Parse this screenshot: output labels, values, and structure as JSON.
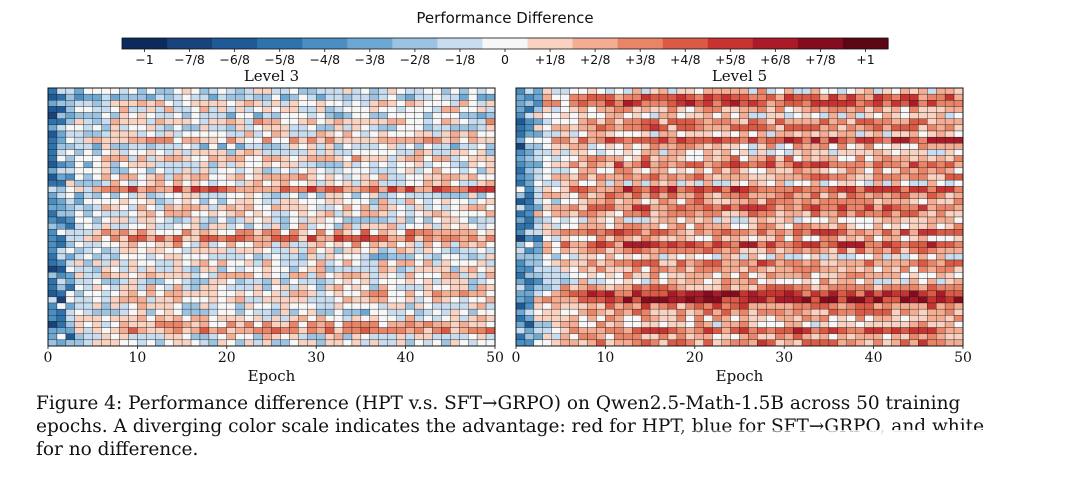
{
  "colorbar": {
    "title": "Performance Difference",
    "ticks": [
      "−1",
      "−7/8",
      "−6/8",
      "−5/8",
      "−4/8",
      "−3/8",
      "−2/8",
      "−1/8",
      "0",
      "+1/8",
      "+2/8",
      "+3/8",
      "+4/8",
      "+5/8",
      "+6/8",
      "+7/8",
      "+1"
    ],
    "colors": [
      "#0c2a5b",
      "#17427a",
      "#1f5a96",
      "#2f73ad",
      "#4a8ec2",
      "#6da8d3",
      "#9cc4e2",
      "#c8ddef",
      "#f7f7f7",
      "#f9d2c1",
      "#f4ad92",
      "#ea8468",
      "#db5a45",
      "#c73331",
      "#ab1a28",
      "#850c1e",
      "#5c0614"
    ]
  },
  "chart_data": [
    {
      "type": "heatmap",
      "title": "Level 3",
      "xlabel": "Epoch",
      "ylabel": "",
      "x_ticks": [
        0,
        10,
        20,
        30,
        40,
        50
      ],
      "x_range": [
        0,
        50
      ],
      "n_epochs": 50,
      "value_range": [
        -1,
        1
      ],
      "grid": true,
      "n_rows": 42,
      "row_profile": [
        -0.1,
        -0.2,
        0.05,
        0,
        -0.15,
        0.1,
        -0.05,
        0.05,
        0.2,
        -0.1,
        0,
        0.1,
        -0.05,
        0,
        0.15,
        0.05,
        0.45,
        -0.1,
        0,
        0.1,
        0.05,
        -0.05,
        0,
        0.25,
        0.35,
        0.1,
        0,
        -0.1,
        0.05,
        0,
        0.1,
        -0.05,
        0,
        0.15,
        0.05,
        0,
        -0.1,
        0.1,
        0.2,
        0.3,
        0,
        -0.05
      ],
      "early_bias": -0.55
    },
    {
      "type": "heatmap",
      "title": "Level 5",
      "xlabel": "Epoch",
      "ylabel": "",
      "x_ticks": [
        0,
        10,
        20,
        30,
        40,
        50
      ],
      "x_range": [
        0,
        50
      ],
      "n_epochs": 50,
      "value_range": [
        -1,
        1
      ],
      "grid": true,
      "n_rows": 42,
      "row_profile": [
        0.1,
        0.45,
        0.5,
        0.2,
        0.05,
        0.3,
        0.35,
        0.1,
        0.55,
        0.15,
        0.05,
        0.25,
        0.4,
        0.2,
        0.3,
        0.1,
        0.5,
        0.35,
        0.25,
        0.45,
        0.3,
        0.1,
        0.2,
        0.4,
        0.15,
        0.55,
        0.3,
        0.05,
        0.35,
        0.25,
        0.2,
        0.1,
        0.3,
        0.65,
        0.7,
        0.4,
        0.3,
        0.2,
        0.15,
        0.5,
        0.25,
        0.35
      ],
      "early_bias": -0.6
    }
  ],
  "caption": {
    "text": "Figure 4: Performance difference (HPT v.s. SFT→GRPO) on Qwen2.5-Math-1.5B across 50 training epochs. A diverging color scale indicates the advantage: red for HPT, blue for SFT→GRPO, and white for no difference."
  }
}
